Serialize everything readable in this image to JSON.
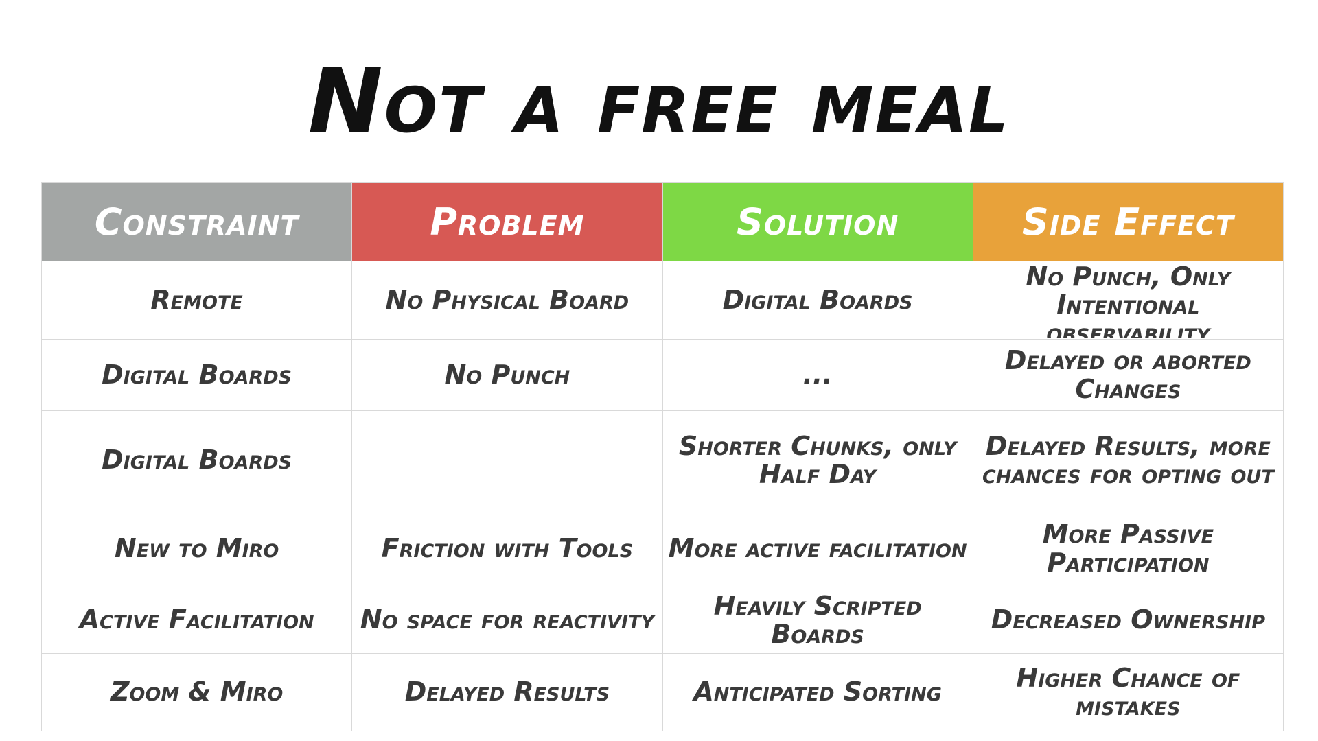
{
  "title": "Not a free meal",
  "columns": [
    {
      "label": "Constraint",
      "color": "#a3a6a5"
    },
    {
      "label": "Problem",
      "color": "#d75954"
    },
    {
      "label": "Solution",
      "color": "#7ed845"
    },
    {
      "label": "Side Effect",
      "color": "#e8a23a"
    }
  ],
  "rows": [
    {
      "constraint": "Remote",
      "problem": "No Physical Board",
      "solution": "Digital Boards",
      "side_effect": "No Punch, Only Intentional observability"
    },
    {
      "constraint": "Digital Boards",
      "problem": "No Punch",
      "solution": "...",
      "side_effect": "Delayed or aborted Changes"
    },
    {
      "constraint": "Digital Boards",
      "problem": "",
      "solution": "Shorter Chunks, only Half Day",
      "side_effect": "Delayed Results, more chances for opting out"
    },
    {
      "constraint": "New to Miro",
      "problem": "Friction with Tools",
      "solution": "More active facilitation",
      "side_effect": "More Passive Participation"
    },
    {
      "constraint": "Active Facilitation",
      "problem": "No space for reactivity",
      "solution": "Heavily Scripted Boards",
      "side_effect": "Decreased Ownership"
    },
    {
      "constraint": "Zoom & Miro",
      "problem": "Delayed Results",
      "solution": "Anticipated Sorting",
      "side_effect": "Higher Chance of mistakes"
    }
  ]
}
